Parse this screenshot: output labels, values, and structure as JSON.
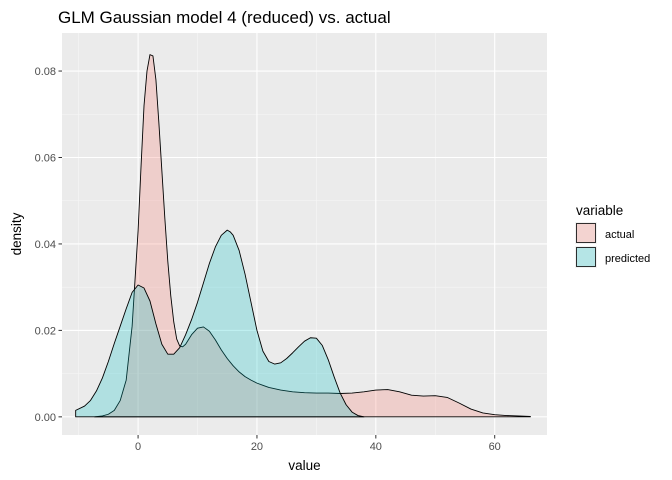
{
  "chart_data": {
    "type": "area",
    "title": "GLM Gaussian model 4 (reduced) vs. actual",
    "xlabel": "value",
    "ylabel": "density",
    "xlim": [
      -12.8,
      68.8
    ],
    "ylim": [
      -0.0042,
      0.0888
    ],
    "xticks": [
      0,
      20,
      40,
      60
    ],
    "yticks": [
      0.0,
      0.02,
      0.04,
      0.06,
      0.08
    ],
    "xtick_labels": [
      "0",
      "20",
      "40",
      "60"
    ],
    "ytick_labels": [
      "0.00",
      "0.02",
      "0.04",
      "0.06",
      "0.08"
    ],
    "grid": true,
    "panel_background": "#ebebeb",
    "legend": {
      "title": "variable",
      "placement": "right",
      "entries": [
        "actual",
        "predicted"
      ]
    },
    "series": [
      {
        "name": "actual",
        "color": "#f8766d",
        "x": [
          -7.3,
          -6,
          -5,
          -4,
          -3,
          -2,
          -1,
          0,
          0.5,
          1,
          1.5,
          2,
          2.5,
          3,
          3.5,
          4,
          4.5,
          5,
          5.5,
          6,
          6.5,
          7,
          7.5,
          8,
          9,
          10,
          11,
          12,
          13,
          14,
          15,
          16,
          17,
          18,
          19,
          20,
          21,
          22,
          24,
          26,
          28,
          30,
          32,
          34,
          36,
          38,
          40,
          42,
          44,
          46,
          48,
          50,
          52,
          54,
          56,
          58,
          60,
          62,
          64,
          66
        ],
        "y": [
          0.0,
          0.0002,
          0.0006,
          0.0015,
          0.0038,
          0.0085,
          0.021,
          0.043,
          0.058,
          0.072,
          0.08,
          0.0838,
          0.0835,
          0.078,
          0.068,
          0.057,
          0.046,
          0.036,
          0.028,
          0.022,
          0.018,
          0.0164,
          0.0162,
          0.0168,
          0.019,
          0.0205,
          0.0208,
          0.0198,
          0.0178,
          0.0155,
          0.0135,
          0.0118,
          0.0104,
          0.0093,
          0.0085,
          0.0078,
          0.0073,
          0.0068,
          0.0062,
          0.0058,
          0.0056,
          0.0055,
          0.0055,
          0.0054,
          0.0055,
          0.0058,
          0.0062,
          0.0063,
          0.0058,
          0.005,
          0.0048,
          0.0049,
          0.0045,
          0.0032,
          0.0018,
          0.0009,
          0.0005,
          0.0003,
          0.0002,
          0.0001
        ]
      },
      {
        "name": "predicted",
        "color": "#00bfc4",
        "x": [
          -10.5,
          -9,
          -8,
          -7,
          -6,
          -5,
          -4,
          -3,
          -2,
          -1,
          0,
          1,
          2,
          3,
          4,
          5,
          6,
          7,
          8,
          9,
          10,
          11,
          12,
          13,
          14,
          15,
          15.5,
          16,
          17,
          18,
          19,
          20,
          21,
          22,
          23,
          24,
          25,
          26,
          27,
          28,
          29,
          30,
          31,
          32,
          33,
          34,
          35,
          36,
          37,
          38
        ],
        "y": [
          0.0015,
          0.0025,
          0.0038,
          0.006,
          0.009,
          0.0128,
          0.017,
          0.021,
          0.025,
          0.0288,
          0.0305,
          0.0298,
          0.0268,
          0.0215,
          0.0168,
          0.0145,
          0.0145,
          0.016,
          0.019,
          0.0225,
          0.0265,
          0.031,
          0.0355,
          0.0393,
          0.042,
          0.0432,
          0.0428,
          0.042,
          0.0385,
          0.033,
          0.0265,
          0.02,
          0.0152,
          0.0128,
          0.0122,
          0.0125,
          0.0135,
          0.0148,
          0.0162,
          0.0175,
          0.0183,
          0.0182,
          0.0165,
          0.0132,
          0.0092,
          0.0055,
          0.0028,
          0.0011,
          0.0003,
          0.0
        ]
      }
    ]
  }
}
